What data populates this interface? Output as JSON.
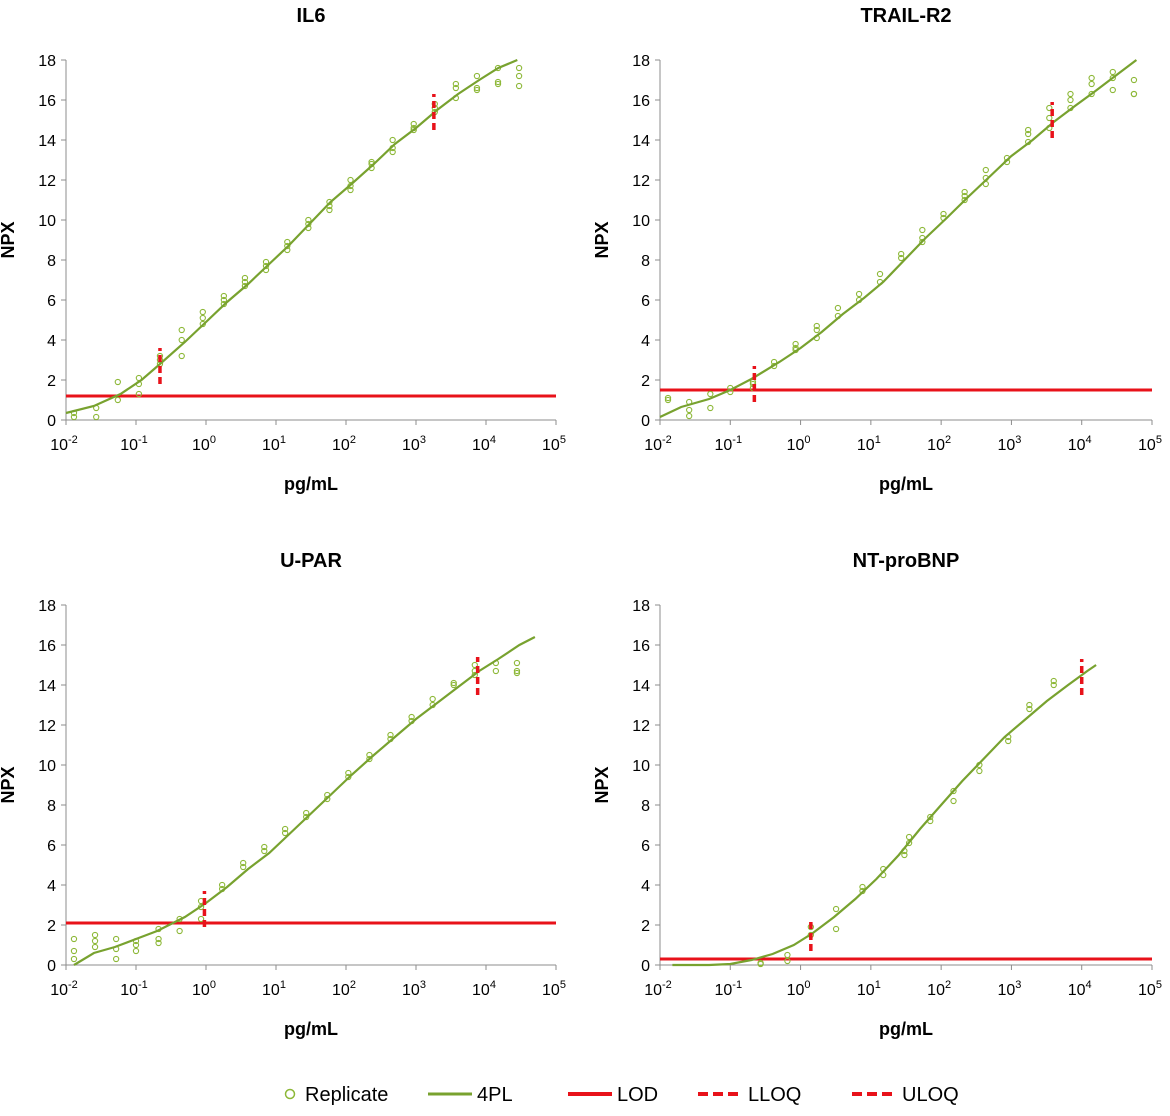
{
  "colors": {
    "replicate": "#8db838",
    "fit": "#78a22f",
    "lod": "#e8121a",
    "axis": "#8c8c8c"
  },
  "legend": {
    "items": [
      {
        "key": "replicate",
        "label": "Replicate"
      },
      {
        "key": "fit",
        "label": "4PL"
      },
      {
        "key": "lod",
        "label": "LOD"
      },
      {
        "key": "lloq",
        "label": "LLOQ"
      },
      {
        "key": "uloq",
        "label": "ULOQ"
      }
    ]
  },
  "chart_data": [
    {
      "type": "scatter",
      "title": "IL6",
      "xlabel": "pg/mL",
      "ylabel": "NPX",
      "xscale": "log",
      "xlim": [
        0.01,
        100000
      ],
      "ylim": [
        0,
        18
      ],
      "yticks": [
        0,
        2,
        4,
        6,
        8,
        10,
        12,
        14,
        16,
        18
      ],
      "xtick_exponents": [
        -2,
        -1,
        0,
        1,
        2,
        3,
        4,
        5
      ],
      "grid": false,
      "lod": 1.2,
      "lloq": {
        "x": 0.22,
        "ymin": 1.8,
        "ymax": 3.6
      },
      "uloq": {
        "x": 1800,
        "ymin": 14.5,
        "ymax": 16.3
      },
      "fit_4pl": {
        "x": [
          0.01,
          0.025,
          0.06,
          0.12,
          0.22,
          0.5,
          1,
          2,
          4,
          8,
          15,
          30,
          60,
          120,
          250,
          500,
          1000,
          2000,
          4000,
          8000,
          15000,
          28000
        ],
        "y": [
          0.35,
          0.7,
          1.3,
          2.0,
          2.8,
          3.9,
          4.9,
          5.9,
          6.8,
          7.8,
          8.7,
          9.8,
          10.9,
          11.8,
          12.8,
          13.8,
          14.6,
          15.5,
          16.3,
          17.0,
          17.6,
          18.0
        ]
      },
      "replicates": {
        "x": [
          0.013,
          0.013,
          0.027,
          0.027,
          0.055,
          0.055,
          0.11,
          0.11,
          0.11,
          0.22,
          0.22,
          0.22,
          0.45,
          0.45,
          0.45,
          0.9,
          0.9,
          0.9,
          1.8,
          1.8,
          1.8,
          3.6,
          3.6,
          3.6,
          7.2,
          7.2,
          7.2,
          14.5,
          14.5,
          14.5,
          29,
          29,
          29,
          58,
          58,
          58,
          116,
          116,
          116,
          232,
          232,
          232,
          464,
          464,
          464,
          928,
          928,
          928,
          1856,
          1856,
          1856,
          3712,
          3712,
          3712,
          7424,
          7424,
          7424,
          14848,
          14848,
          14848,
          29696,
          29696,
          29696
        ],
        "y": [
          0.15,
          0.35,
          0.15,
          0.6,
          1.0,
          1.9,
          1.3,
          1.8,
          2.1,
          2.8,
          3.0,
          3.2,
          3.2,
          4.0,
          4.5,
          4.8,
          5.1,
          5.4,
          5.8,
          6.0,
          6.2,
          6.7,
          6.9,
          7.1,
          7.5,
          7.7,
          7.9,
          8.5,
          8.7,
          8.9,
          9.6,
          9.8,
          10.0,
          10.5,
          10.7,
          10.9,
          11.5,
          11.7,
          12.0,
          12.6,
          12.8,
          12.9,
          13.4,
          13.6,
          14.0,
          14.5,
          14.6,
          14.8,
          15.4,
          15.6,
          15.8,
          16.1,
          16.6,
          16.8,
          16.5,
          16.6,
          17.2,
          16.8,
          16.9,
          17.6,
          16.7,
          17.2,
          17.6
        ]
      }
    },
    {
      "type": "scatter",
      "title": "TRAIL-R2",
      "xlabel": "pg/mL",
      "ylabel": "NPX",
      "xscale": "log",
      "xlim": [
        0.01,
        100000
      ],
      "ylim": [
        0,
        18
      ],
      "yticks": [
        0,
        2,
        4,
        6,
        8,
        10,
        12,
        14,
        16,
        18
      ],
      "xtick_exponents": [
        -2,
        -1,
        0,
        1,
        2,
        3,
        4,
        5
      ],
      "grid": false,
      "lod": 1.5,
      "lloq": {
        "x": 0.22,
        "ymin": 0.9,
        "ymax": 2.7
      },
      "uloq": {
        "x": 3800,
        "ymin": 14.1,
        "ymax": 15.9
      },
      "fit_4pl": {
        "x": [
          0.01,
          0.02,
          0.05,
          0.1,
          0.2,
          0.5,
          1,
          2,
          4,
          8,
          15,
          30,
          60,
          120,
          250,
          500,
          1000,
          2000,
          4000,
          8000,
          15000,
          30000,
          60000
        ],
        "y": [
          0.15,
          0.65,
          1.05,
          1.5,
          2.05,
          2.9,
          3.6,
          4.4,
          5.3,
          6.1,
          6.9,
          8.0,
          9.1,
          10.1,
          11.2,
          12.2,
          13.2,
          14.0,
          14.9,
          15.7,
          16.4,
          17.2,
          18.0
        ]
      },
      "replicates": {
        "x": [
          0.013,
          0.013,
          0.026,
          0.026,
          0.026,
          0.052,
          0.052,
          0.1,
          0.1,
          0.21,
          0.21,
          0.21,
          0.42,
          0.42,
          0.85,
          0.85,
          0.85,
          1.7,
          1.7,
          1.7,
          3.4,
          3.4,
          6.8,
          6.8,
          13.5,
          13.5,
          27,
          27,
          54,
          54,
          54,
          108,
          108,
          216,
          216,
          216,
          432,
          432,
          432,
          865,
          865,
          1730,
          1730,
          1730,
          3460,
          3460,
          3460,
          6920,
          6920,
          6920,
          13840,
          13840,
          13840,
          27680,
          27680,
          27680,
          55360,
          55360,
          55360
        ],
        "y": [
          1.0,
          1.1,
          0.2,
          0.5,
          0.9,
          0.6,
          1.3,
          1.4,
          1.6,
          1.6,
          1.8,
          1.9,
          2.7,
          2.9,
          3.5,
          3.6,
          3.8,
          4.1,
          4.5,
          4.7,
          5.2,
          5.6,
          6.0,
          6.3,
          6.9,
          7.3,
          8.1,
          8.3,
          8.9,
          9.1,
          9.5,
          10.1,
          10.3,
          11.0,
          11.2,
          11.4,
          11.8,
          12.1,
          12.5,
          12.9,
          13.1,
          13.9,
          14.3,
          14.5,
          14.6,
          15.1,
          15.6,
          15.6,
          16.0,
          16.3,
          16.3,
          16.8,
          17.1,
          16.5,
          17.1,
          17.4,
          16.3,
          16.3,
          17.0
        ]
      }
    },
    {
      "type": "scatter",
      "title": "U-PAR",
      "xlabel": "pg/mL",
      "ylabel": "NPX",
      "xscale": "log",
      "xlim": [
        0.01,
        100000
      ],
      "ylim": [
        0,
        18
      ],
      "yticks": [
        0,
        2,
        4,
        6,
        8,
        10,
        12,
        14,
        16,
        18
      ],
      "xtick_exponents": [
        -2,
        -1,
        0,
        1,
        2,
        3,
        4,
        5
      ],
      "grid": false,
      "lod": 2.1,
      "lloq": {
        "x": 0.95,
        "ymin": 1.9,
        "ymax": 3.7
      },
      "uloq": {
        "x": 7600,
        "ymin": 13.5,
        "ymax": 15.4
      },
      "fit_4pl": {
        "x": [
          0.013,
          0.025,
          0.05,
          0.1,
          0.2,
          0.5,
          1,
          2,
          4,
          8,
          15,
          30,
          60,
          120,
          250,
          500,
          1000,
          2000,
          4000,
          8000,
          15000,
          30000,
          50000
        ],
        "y": [
          0.0,
          0.6,
          0.9,
          1.3,
          1.7,
          2.4,
          3.1,
          3.9,
          4.8,
          5.6,
          6.5,
          7.5,
          8.5,
          9.5,
          10.5,
          11.4,
          12.3,
          13.1,
          13.9,
          14.7,
          15.3,
          16.0,
          16.4
        ]
      },
      "replicates": {
        "x": [
          0.013,
          0.013,
          0.013,
          0.026,
          0.026,
          0.026,
          0.052,
          0.052,
          0.052,
          0.1,
          0.1,
          0.1,
          0.21,
          0.21,
          0.21,
          0.42,
          0.42,
          0.85,
          0.85,
          0.85,
          1.7,
          1.7,
          3.4,
          3.4,
          6.8,
          6.8,
          13.5,
          13.5,
          27,
          27,
          54,
          54,
          108,
          108,
          216,
          216,
          432,
          432,
          865,
          865,
          1730,
          1730,
          3460,
          3460,
          6920,
          6920,
          6920,
          13840,
          13840,
          27680,
          27680,
          27680
        ],
        "y": [
          0.3,
          0.7,
          1.3,
          0.9,
          1.2,
          1.5,
          0.3,
          0.8,
          1.3,
          0.7,
          1.0,
          1.2,
          1.1,
          1.3,
          1.8,
          1.7,
          2.3,
          2.3,
          2.9,
          3.2,
          3.8,
          4.0,
          4.9,
          5.1,
          5.7,
          5.9,
          6.6,
          6.8,
          7.4,
          7.6,
          8.3,
          8.5,
          9.4,
          9.6,
          10.3,
          10.5,
          11.3,
          11.5,
          12.2,
          12.4,
          13.0,
          13.3,
          14.0,
          14.1,
          14.5,
          14.7,
          15.0,
          14.7,
          15.1,
          14.6,
          14.7,
          15.1
        ]
      }
    },
    {
      "type": "scatter",
      "title": "NT-proBNP",
      "xlabel": "pg/mL",
      "ylabel": "NPX",
      "xscale": "log",
      "xlim": [
        0.01,
        100000
      ],
      "ylim": [
        0,
        18
      ],
      "yticks": [
        0,
        2,
        4,
        6,
        8,
        10,
        12,
        14,
        16,
        18
      ],
      "xtick_exponents": [
        -2,
        -1,
        0,
        1,
        2,
        3,
        4,
        5
      ],
      "grid": false,
      "lod": 0.3,
      "lloq": {
        "x": 1.4,
        "ymin": 0.7,
        "ymax": 2.2
      },
      "uloq": {
        "x": 10000,
        "ymin": 13.5,
        "ymax": 15.3
      },
      "fit_4pl": {
        "x": [
          0.015,
          0.05,
          0.1,
          0.2,
          0.4,
          0.8,
          1.5,
          3,
          6,
          12,
          25,
          50,
          100,
          200,
          400,
          800,
          1600,
          3200,
          6400,
          12000,
          16000
        ],
        "y": [
          0.0,
          0.0,
          0.05,
          0.25,
          0.55,
          1.0,
          1.6,
          2.4,
          3.3,
          4.3,
          5.5,
          6.8,
          8.0,
          9.2,
          10.3,
          11.4,
          12.3,
          13.2,
          14.0,
          14.7,
          15.0
        ]
      },
      "replicates": {
        "x": [
          0.27,
          0.27,
          0.65,
          0.65,
          1.4,
          1.4,
          3.2,
          3.2,
          7.6,
          7.6,
          15,
          15,
          30,
          30,
          35,
          35,
          70,
          70,
          150,
          150,
          350,
          350,
          900,
          900,
          1800,
          1800,
          4000,
          4000
        ],
        "y": [
          0.05,
          0.1,
          0.2,
          0.5,
          1.5,
          1.9,
          1.8,
          2.8,
          3.7,
          3.9,
          4.5,
          4.8,
          5.5,
          5.7,
          6.1,
          6.4,
          7.2,
          7.4,
          8.2,
          8.7,
          9.7,
          10.0,
          11.2,
          11.4,
          12.8,
          13.0,
          14.0,
          14.2
        ]
      }
    }
  ]
}
